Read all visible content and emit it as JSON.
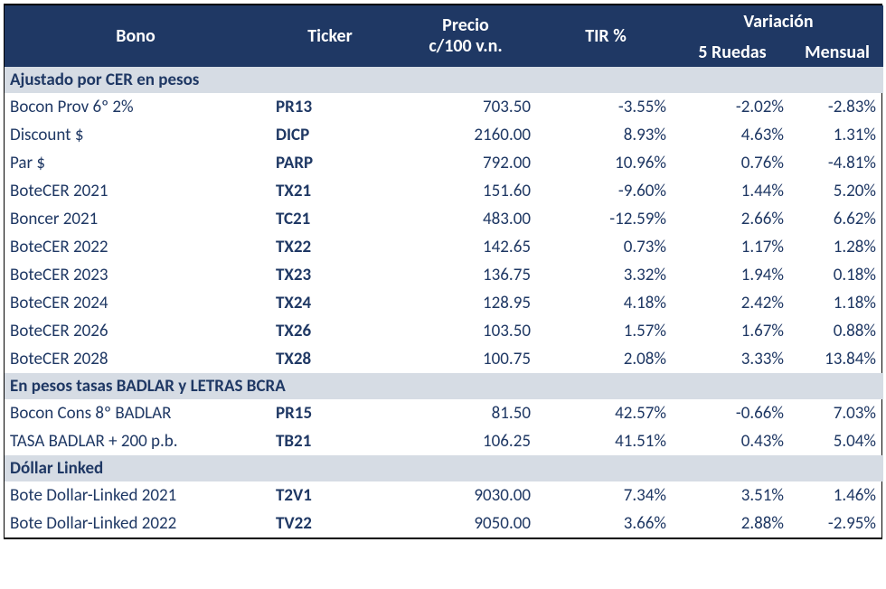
{
  "header": {
    "bono": "Bono",
    "ticker": "Ticker",
    "precio_line1": "Precio",
    "precio_line2": "c/100 v.n.",
    "tir": "TIR %",
    "variacion": "Variación",
    "var_5ruedas": "5 Ruedas",
    "var_mensual": "Mensual"
  },
  "colors": {
    "header_bg": "#1f3864",
    "header_fg": "#ffffff",
    "section_bg": "#d6dce4",
    "section_fg": "#1f3864",
    "body_fg": "#1f3864",
    "background": "#ffffff"
  },
  "fonts": {
    "family": "Calibri, Arial, sans-serif",
    "header_size_pt": 15,
    "body_size_pt": 14
  },
  "sections": [
    {
      "title": "Ajustado por CER en pesos",
      "rows": [
        {
          "bono": "Bocon Prov 6º 2%",
          "ticker": "PR13",
          "precio": "703.50",
          "tir": "-3.55%",
          "var5": "-2.02%",
          "varm": "-2.83%"
        },
        {
          "bono": "Discount $",
          "ticker": "DICP",
          "precio": "2160.00",
          "tir": "8.93%",
          "var5": "4.63%",
          "varm": "1.31%"
        },
        {
          "bono": "Par $",
          "ticker": "PARP",
          "precio": "792.00",
          "tir": "10.96%",
          "var5": "0.76%",
          "varm": "-4.81%"
        },
        {
          "bono": "BoteCER 2021",
          "ticker": "TX21",
          "precio": "151.60",
          "tir": "-9.60%",
          "var5": "1.44%",
          "varm": "5.20%"
        },
        {
          "bono": "Boncer 2021",
          "ticker": "TC21",
          "precio": "483.00",
          "tir": "-12.59%",
          "var5": "2.66%",
          "varm": "6.62%"
        },
        {
          "bono": "BoteCER 2022",
          "ticker": "TX22",
          "precio": "142.65",
          "tir": "0.73%",
          "var5": "1.17%",
          "varm": "1.28%"
        },
        {
          "bono": "BoteCER 2023",
          "ticker": "TX23",
          "precio": "136.75",
          "tir": "3.32%",
          "var5": "1.94%",
          "varm": "0.18%"
        },
        {
          "bono": "BoteCER 2024",
          "ticker": "TX24",
          "precio": "128.95",
          "tir": "4.18%",
          "var5": "2.42%",
          "varm": "1.18%"
        },
        {
          "bono": "BoteCER 2026",
          "ticker": "TX26",
          "precio": "103.50",
          "tir": "1.57%",
          "var5": "1.67%",
          "varm": "0.88%"
        },
        {
          "bono": "BoteCER 2028",
          "ticker": "TX28",
          "precio": "100.75",
          "tir": "2.08%",
          "var5": "3.33%",
          "varm": "13.84%"
        }
      ]
    },
    {
      "title": "En pesos tasas BADLAR y LETRAS BCRA",
      "rows": [
        {
          "bono": "Bocon Cons 8º BADLAR",
          "ticker": "PR15",
          "precio": "81.50",
          "tir": "42.57%",
          "var5": "-0.66%",
          "varm": "7.03%"
        },
        {
          "bono": "TASA BADLAR + 200 p.b.",
          "ticker": "TB21",
          "precio": "106.25",
          "tir": "41.51%",
          "var5": "0.43%",
          "varm": "5.04%"
        }
      ]
    },
    {
      "title": "Dóllar Linked",
      "rows": [
        {
          "bono": "Bote Dollar-Linked 2021",
          "ticker": "T2V1",
          "precio": "9030.00",
          "tir": "7.34%",
          "var5": "3.51%",
          "varm": "1.46%"
        },
        {
          "bono": "Bote Dollar-Linked 2022",
          "ticker": "TV22",
          "precio": "9050.00",
          "tir": "3.66%",
          "var5": "2.88%",
          "varm": "-2.95%"
        }
      ]
    }
  ]
}
